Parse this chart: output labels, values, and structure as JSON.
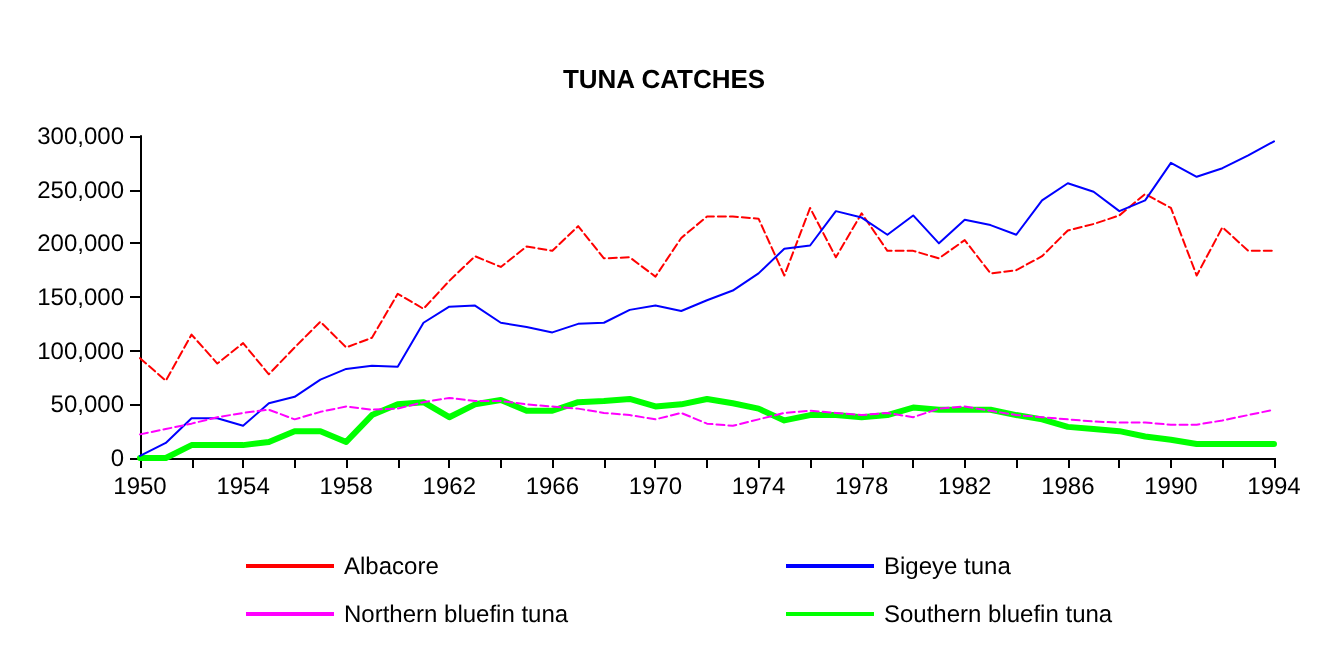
{
  "chart_data": {
    "type": "line",
    "title": "TUNA CATCHES",
    "x": [
      1950,
      1951,
      1952,
      1953,
      1954,
      1955,
      1956,
      1957,
      1958,
      1959,
      1960,
      1961,
      1962,
      1963,
      1964,
      1965,
      1966,
      1967,
      1968,
      1969,
      1970,
      1971,
      1972,
      1973,
      1974,
      1975,
      1976,
      1977,
      1978,
      1979,
      1980,
      1981,
      1982,
      1983,
      1984,
      1985,
      1986,
      1987,
      1988,
      1989,
      1990,
      1991,
      1992,
      1993,
      1994
    ],
    "series": [
      {
        "name": "Albacore",
        "color": "#ff0000",
        "line_style": "dashed",
        "values": [
          93000,
          72000,
          115000,
          88000,
          107000,
          78000,
          103000,
          127000,
          103000,
          112000,
          153000,
          139000,
          165000,
          188000,
          178000,
          197000,
          193000,
          216000,
          186000,
          187000,
          169000,
          205000,
          225000,
          225000,
          223000,
          170000,
          233000,
          187000,
          228000,
          193000,
          193000,
          186000,
          203000,
          172000,
          175000,
          188000,
          212000,
          218000,
          226000,
          246000,
          233000,
          170000,
          215000,
          193000,
          193000
        ]
      },
      {
        "name": "Bigeye tuna",
        "color": "#0000ff",
        "line_style": "solid",
        "values": [
          2000,
          14000,
          37000,
          37000,
          30000,
          51000,
          57000,
          73000,
          83000,
          86000,
          85000,
          126000,
          141000,
          142000,
          126000,
          122000,
          117000,
          125000,
          126000,
          138000,
          142000,
          137000,
          147000,
          156000,
          172000,
          195000,
          198000,
          230000,
          224000,
          208000,
          226000,
          200000,
          222000,
          217000,
          208000,
          240000,
          256000,
          248000,
          230000,
          240000,
          275000,
          262000,
          270000,
          282000,
          295000
        ]
      },
      {
        "name": "Northern bluefin tuna",
        "color": "#ff00ff",
        "line_style": "dashed",
        "values": [
          22000,
          27000,
          32000,
          38000,
          42000,
          45000,
          36000,
          43000,
          48000,
          45000,
          46000,
          52000,
          56000,
          53000,
          53000,
          50000,
          48000,
          46000,
          42000,
          40000,
          36000,
          42000,
          32000,
          30000,
          36000,
          42000,
          44000,
          42000,
          40000,
          42000,
          38000,
          46000,
          48000,
          44000,
          40000,
          38000,
          36000,
          34000,
          33000,
          33000,
          31000,
          31000,
          35000,
          40000,
          45000
        ]
      },
      {
        "name": "Southern bluefin tuna",
        "color": "#00ff00",
        "line_style": "solid",
        "values": [
          0,
          0,
          12000,
          12000,
          12000,
          15000,
          25000,
          25000,
          15000,
          40000,
          50000,
          52000,
          38000,
          50000,
          54000,
          44000,
          44000,
          52000,
          53000,
          55000,
          48000,
          50000,
          55000,
          51000,
          46000,
          35000,
          40000,
          40000,
          38000,
          40000,
          47000,
          45000,
          45000,
          45000,
          40000,
          36000,
          29000,
          27000,
          25000,
          20000,
          17000,
          13000,
          13000,
          13000,
          13000
        ]
      }
    ],
    "xlim": [
      1950,
      1994
    ],
    "xticks": [
      1950,
      {
        "value": 1952,
        "label": null
      },
      1954,
      {
        "value": 1956,
        "label": null
      },
      1958,
      {
        "value": 1960,
        "label": null
      },
      1962,
      {
        "value": 1964,
        "label": null
      },
      1966,
      {
        "value": 1968,
        "label": null
      },
      1970,
      {
        "value": 1972,
        "label": null
      },
      1974,
      {
        "value": 1976,
        "label": null
      },
      1978,
      {
        "value": 1980,
        "label": null
      },
      1982,
      {
        "value": 1984,
        "label": null
      },
      1986,
      {
        "value": 1988,
        "label": null
      },
      1990,
      {
        "value": 1992,
        "label": null
      },
      1994
    ],
    "ylim": [
      0,
      300000
    ],
    "yticks": [
      0,
      {
        "value": 50000,
        "label": "50,000"
      },
      {
        "value": 100000,
        "label": "100,000"
      },
      {
        "value": 150000,
        "label": "150,000"
      },
      {
        "value": 200000,
        "label": "200,000"
      },
      {
        "value": 250000,
        "label": "250,000"
      },
      {
        "value": 300000,
        "label": "300,000"
      }
    ],
    "grid": false,
    "legend": "bottom",
    "marker": "none"
  }
}
